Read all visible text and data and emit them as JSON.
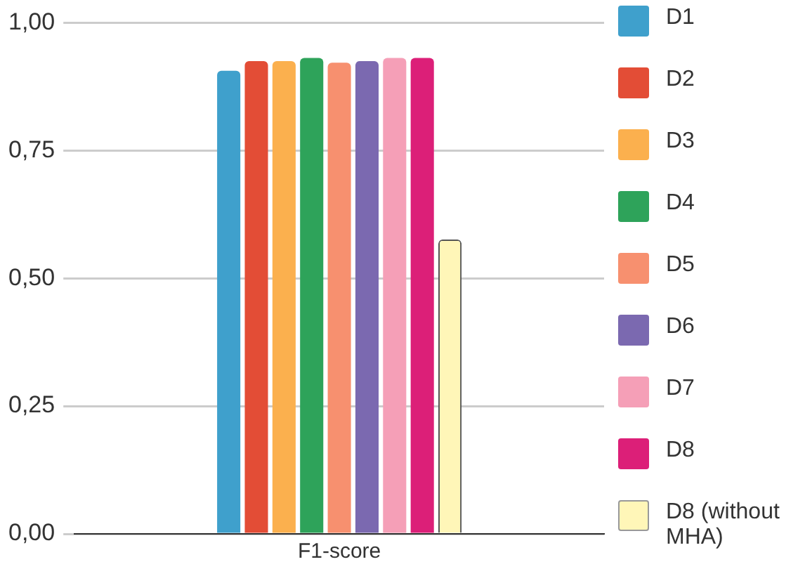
{
  "chart_data": {
    "type": "bar",
    "categories": [
      "F1-score"
    ],
    "series": [
      {
        "name": "D1",
        "color": "#3fa0cc",
        "values": [
          0.906
        ]
      },
      {
        "name": "D2",
        "color": "#e34d36",
        "values": [
          0.925
        ]
      },
      {
        "name": "D3",
        "color": "#fbb04e",
        "values": [
          0.925
        ]
      },
      {
        "name": "D4",
        "color": "#2ea35a",
        "values": [
          0.931
        ]
      },
      {
        "name": "D5",
        "color": "#f7906f",
        "values": [
          0.922
        ]
      },
      {
        "name": "D6",
        "color": "#7b69b0",
        "values": [
          0.925
        ]
      },
      {
        "name": "D7",
        "color": "#f59fb7",
        "values": [
          0.931
        ]
      },
      {
        "name": "D8",
        "color": "#dc1f78",
        "values": [
          0.931
        ]
      },
      {
        "name": "D8 (without MHA)",
        "color": "#fff6b8",
        "values": [
          0.576
        ]
      }
    ],
    "ylim": [
      0,
      1
    ],
    "yticks": [
      {
        "value": 0,
        "label": "0,00"
      },
      {
        "value": 0.25,
        "label": "0,25"
      },
      {
        "value": 0.5,
        "label": "0,50"
      },
      {
        "value": 0.75,
        "label": "0,75"
      },
      {
        "value": 1,
        "label": "1,00"
      }
    ],
    "grid": "y",
    "legend": "right"
  }
}
